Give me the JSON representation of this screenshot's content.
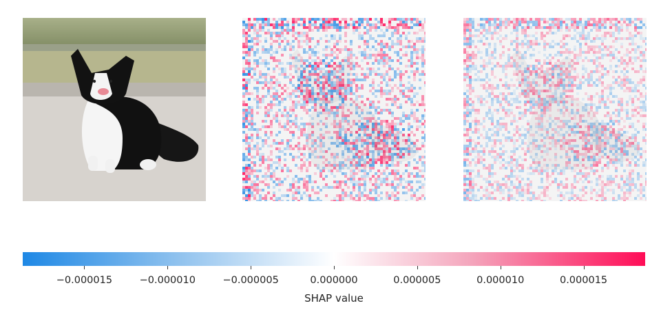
{
  "chart_data": {
    "type": "heatmap",
    "title": "",
    "panels": [
      {
        "kind": "image",
        "content": "border collie dog sitting on pavement"
      },
      {
        "kind": "shap-heatmap",
        "content": "pixel-level SHAP values overlaid on grayscale dog image"
      },
      {
        "kind": "shap-heatmap",
        "content": "pixel-level SHAP values overlaid on grayscale dog image"
      }
    ],
    "colorbar": {
      "label": "SHAP value",
      "range": [
        -1.87e-05,
        1.87e-05
      ],
      "ticks": [
        -1.5e-05,
        -1e-05,
        -5e-06,
        0,
        5e-06,
        1e-05,
        1.5e-05
      ],
      "tick_labels": [
        "−0.000015",
        "−0.000010",
        "−0.000005",
        "0.000000",
        "0.000005",
        "0.000010",
        "0.000015"
      ],
      "colors": {
        "negative": "#1e88e5",
        "zero": "#ffffff",
        "positive": "#ff0d57"
      }
    }
  }
}
